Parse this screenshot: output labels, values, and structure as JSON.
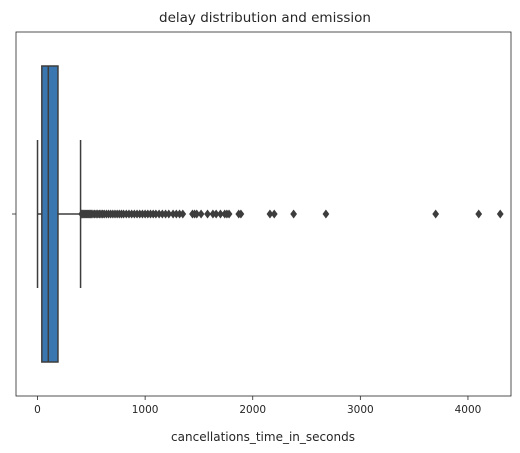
{
  "chart_data": {
    "type": "box",
    "orientation": "horizontal",
    "title": "delay distribution and emission",
    "xlabel": "cancellations_time_in_seconds",
    "ylabel": "",
    "xlim": [
      -200,
      4400
    ],
    "xticks": [
      0,
      1000,
      2000,
      3000,
      4000
    ],
    "xtick_labels": [
      "0",
      "1000",
      "2000",
      "3000",
      "4000"
    ],
    "grid": false,
    "colors": {
      "box_fill": "#3a76af",
      "line": "#3d3d3d"
    },
    "box": {
      "whisker_low": 0,
      "q1": 40,
      "median": 100,
      "q3": 190,
      "whisker_high": 400
    },
    "outliers": [
      410,
      420,
      430,
      440,
      450,
      460,
      470,
      480,
      490,
      500,
      515,
      530,
      545,
      560,
      575,
      590,
      605,
      620,
      640,
      660,
      680,
      700,
      720,
      740,
      760,
      780,
      800,
      825,
      850,
      875,
      900,
      925,
      950,
      975,
      1000,
      1025,
      1050,
      1075,
      1100,
      1130,
      1160,
      1190,
      1220,
      1260,
      1290,
      1320,
      1350,
      1440,
      1460,
      1480,
      1520,
      1580,
      1630,
      1660,
      1700,
      1740,
      1760,
      1780,
      1870,
      1890,
      2160,
      2200,
      2380,
      2680,
      3700,
      4100,
      4300
    ]
  }
}
